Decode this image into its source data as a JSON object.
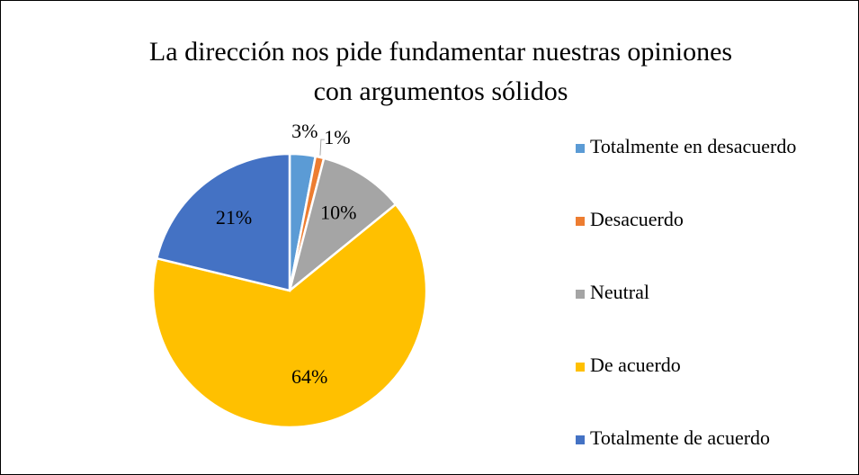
{
  "chart_data": {
    "type": "pie",
    "title": "La dirección nos pide fundamentar nuestras opiniones con argumentos sólidos",
    "categories": [
      "Totalmente en desacuerdo",
      "Desacuerdo",
      "Neutral",
      "De acuerdo",
      "Totalmente de acuerdo"
    ],
    "values": [
      3,
      1,
      10,
      64,
      21
    ],
    "value_labels": [
      "3%",
      "1%",
      "10%",
      "64%",
      "21%"
    ],
    "colors": [
      "#5b9bd5",
      "#ed7d31",
      "#a5a5a5",
      "#ffc000",
      "#4472c4"
    ],
    "legend": "right"
  }
}
